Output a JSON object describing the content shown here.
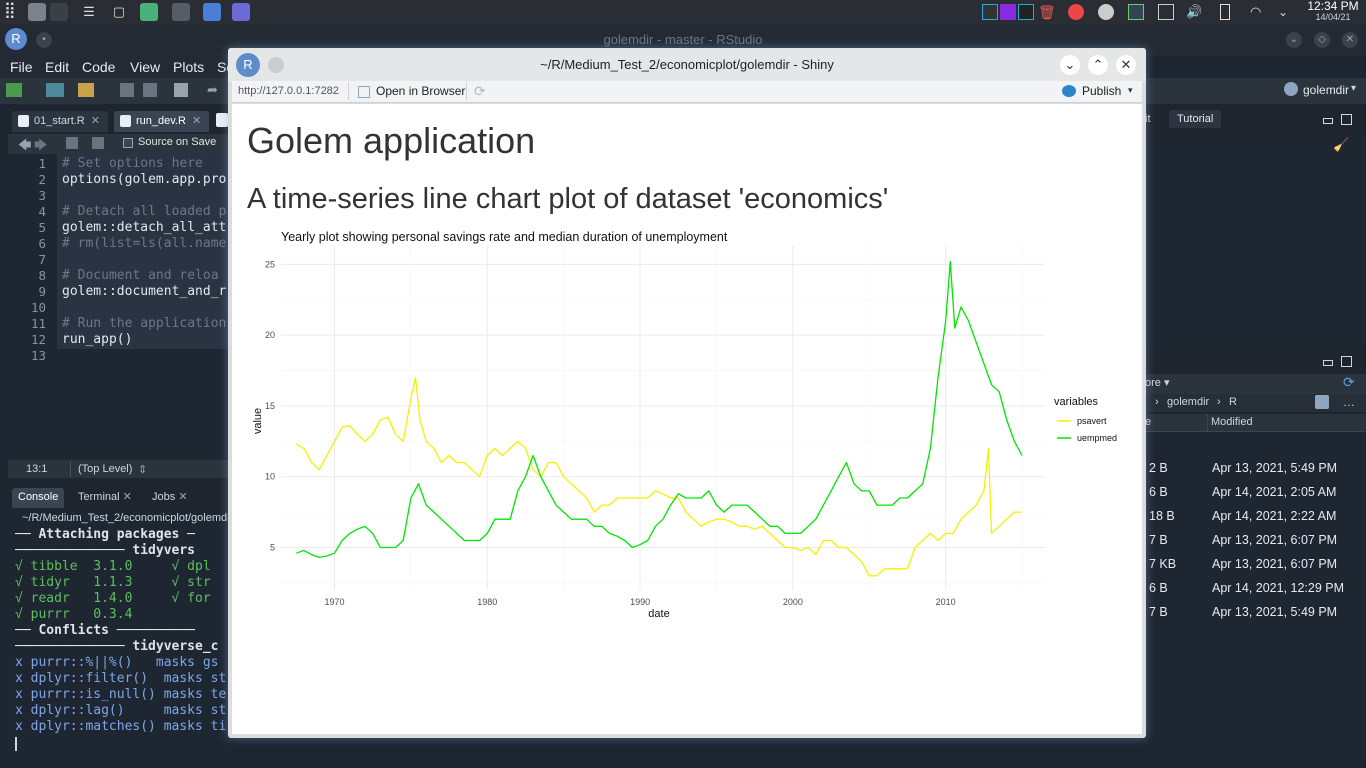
{
  "taskbar": {
    "time": "12:34 PM",
    "date": "14/04/21"
  },
  "rstudio": {
    "window_title": "golemdir - master - RStudio",
    "menu": [
      "File",
      "Edit",
      "Code",
      "View",
      "Plots",
      "Se"
    ],
    "project": "golemdir",
    "editor_tabs": [
      "01_start.R",
      "run_dev.R"
    ],
    "source_on_save": "Source on Save",
    "code_lines": [
      {
        "n": "1",
        "t": "# Set options here",
        "comment": true
      },
      {
        "n": "2",
        "t": "options(golem.app.pro",
        "comment": false
      },
      {
        "n": "3",
        "t": "",
        "comment": false
      },
      {
        "n": "4",
        "t": "# Detach all loaded p",
        "comment": true
      },
      {
        "n": "5",
        "t": "golem::detach_all_att",
        "comment": false
      },
      {
        "n": "6",
        "t": "# rm(list=ls(all.name",
        "comment": true
      },
      {
        "n": "7",
        "t": "",
        "comment": false
      },
      {
        "n": "8",
        "t": "# Document and reloa",
        "comment": true
      },
      {
        "n": "9",
        "t": "golem::document_and_r",
        "comment": false
      },
      {
        "n": "10",
        "t": "",
        "comment": false
      },
      {
        "n": "11",
        "t": "# Run the application",
        "comment": true
      },
      {
        "n": "12",
        "t": "run_app()",
        "comment": false
      },
      {
        "n": "13",
        "t": "",
        "comment": false
      }
    ],
    "cursor_pos": "13:1",
    "scope": "(Top Level)",
    "console_tabs": [
      "Console",
      "Terminal",
      "Jobs"
    ],
    "console_path": "~/R/Medium_Test_2/economicplot/golemdi",
    "console_lines": [
      "── Attaching packages ─",
      "────────────── tidyvers",
      "√ tibble  3.1.0     √ dpl",
      "√ tidyr   1.1.3     √ str",
      "√ readr   1.4.0     √ for",
      "√ purrr   0.3.4",
      "── Conflicts ──────────",
      "────────────── tidyverse_c",
      "x purrr::%||%()   masks gs",
      "x dplyr::filter()  masks st",
      "x purrr::is_null() masks te",
      "x dplyr::lag()     masks st",
      "x dplyr::matches() masks ti"
    ],
    "right_tabs": [
      "it",
      "Tutorial"
    ],
    "files_more": "ore",
    "files_crumb": [
      "golemdir",
      "R"
    ],
    "files_header": [
      "e",
      "Modified"
    ],
    "files": [
      {
        "size": "2 B",
        "modified": "Apr 13, 2021, 5:49 PM"
      },
      {
        "size": "6 B",
        "modified": "Apr 14, 2021, 2:05 AM"
      },
      {
        "size": "18 B",
        "modified": "Apr 14, 2021, 2:22 AM"
      },
      {
        "size": "7 B",
        "modified": "Apr 13, 2021, 6:07 PM"
      },
      {
        "size": "7 KB",
        "modified": "Apr 13, 2021, 6:07 PM"
      },
      {
        "size": "6 B",
        "modified": "Apr 14, 2021, 12:29 PM"
      },
      {
        "size": "7 B",
        "modified": "Apr 13, 2021, 5:49 PM"
      }
    ]
  },
  "shiny": {
    "window_title": "~/R/Medium_Test_2/economicplot/golemdir - Shiny",
    "url": "http://127.0.0.1:7282",
    "open_in_browser": "Open in Browser",
    "publish": "Publish",
    "h1": "Golem application",
    "h2": "A time-series line chart plot of dataset 'economics'"
  },
  "chart_data": {
    "type": "line",
    "title": "Yearly plot showing personal savings rate and median duration of unemployment",
    "xlabel": "date",
    "ylabel": "value",
    "xlim": [
      1966.5,
      2016.5
    ],
    "ylim": [
      2.0,
      26.3
    ],
    "xticks": [
      1970,
      1980,
      1990,
      2000,
      2010
    ],
    "yticks": [
      5,
      10,
      15,
      20,
      25
    ],
    "legend_title": "variables",
    "legend_position": "right",
    "grid": true,
    "series": [
      {
        "name": "psavert",
        "color": "#f2f200",
        "x": [
          1967.5,
          1968,
          1968.5,
          1969,
          1969.5,
          1970,
          1970.5,
          1971,
          1971.5,
          1972,
          1972.5,
          1973,
          1973.5,
          1974,
          1974.5,
          1975,
          1975.3,
          1975.6,
          1976,
          1976.5,
          1977,
          1977.5,
          1978,
          1978.5,
          1979,
          1979.5,
          1980,
          1980.5,
          1981,
          1981.5,
          1982,
          1982.5,
          1983,
          1983.5,
          1984,
          1984.5,
          1985,
          1985.5,
          1986,
          1986.5,
          1987,
          1987.5,
          1988,
          1988.5,
          1989,
          1989.5,
          1990,
          1990.5,
          1991,
          1991.5,
          1992,
          1992.5,
          1993,
          1993.5,
          1994,
          1994.5,
          1995,
          1995.5,
          1996,
          1996.5,
          1997,
          1997.5,
          1998,
          1998.5,
          1999,
          1999.5,
          2000,
          2000.5,
          2001,
          2001.5,
          2002,
          2002.5,
          2003,
          2003.5,
          2004,
          2004.5,
          2005,
          2005.5,
          2006,
          2006.5,
          2007,
          2007.5,
          2008,
          2008.5,
          2009,
          2009.5,
          2010,
          2010.5,
          2011,
          2011.5,
          2012,
          2012.5,
          2012.8,
          2013,
          2013.5,
          2014,
          2014.5,
          2015
        ],
        "y": [
          12.3,
          12.0,
          11.0,
          10.5,
          11.5,
          12.5,
          13.5,
          13.6,
          13.0,
          12.5,
          13.0,
          14.0,
          14.2,
          13.0,
          12.5,
          15.5,
          17.0,
          14.0,
          12.5,
          12.0,
          11.0,
          11.5,
          11.0,
          11.0,
          10.5,
          10.0,
          11.5,
          12.0,
          11.5,
          12.0,
          12.5,
          12.0,
          10.5,
          10.0,
          11.0,
          11.0,
          10.0,
          9.5,
          9.0,
          8.5,
          7.5,
          8.0,
          8.0,
          8.5,
          8.5,
          8.5,
          8.5,
          8.5,
          9.0,
          8.8,
          8.5,
          8.5,
          7.5,
          7.0,
          6.5,
          6.8,
          7.0,
          7.0,
          6.8,
          6.5,
          6.5,
          6.3,
          6.5,
          6.0,
          5.5,
          5.0,
          5.0,
          4.8,
          5.0,
          4.5,
          5.5,
          5.5,
          5.0,
          5.0,
          4.5,
          4.0,
          3.0,
          3.0,
          3.5,
          3.5,
          3.5,
          3.5,
          5.0,
          5.5,
          6.0,
          5.5,
          6.0,
          6.0,
          7.0,
          7.5,
          8.0,
          9.0,
          12.0,
          6.0,
          6.5,
          7.0,
          7.5,
          7.5
        ]
      },
      {
        "name": "uempmed",
        "color": "#00e600",
        "x": [
          1967.5,
          1968,
          1968.5,
          1969,
          1969.5,
          1970,
          1970.5,
          1971,
          1971.5,
          1972,
          1972.5,
          1973,
          1973.5,
          1974,
          1974.5,
          1975,
          1975.5,
          1976,
          1976.5,
          1977,
          1977.5,
          1978,
          1978.5,
          1979,
          1979.5,
          1980,
          1980.5,
          1981,
          1981.5,
          1982,
          1982.5,
          1983,
          1983.5,
          1984,
          1984.5,
          1985,
          1985.5,
          1986,
          1986.5,
          1987,
          1987.5,
          1988,
          1988.5,
          1989,
          1989.5,
          1990,
          1990.5,
          1991,
          1991.5,
          1992,
          1992.5,
          1993,
          1993.5,
          1994,
          1994.5,
          1995,
          1995.5,
          1996,
          1996.5,
          1997,
          1997.5,
          1998,
          1998.5,
          1999,
          1999.5,
          2000,
          2000.5,
          2001,
          2001.5,
          2002,
          2002.5,
          2003,
          2003.5,
          2004,
          2004.5,
          2005,
          2005.5,
          2006,
          2006.5,
          2007,
          2007.5,
          2008,
          2008.5,
          2009,
          2009.5,
          2010,
          2010.3,
          2010.6,
          2011,
          2011.5,
          2012,
          2012.5,
          2013,
          2013.5,
          2014,
          2014.5,
          2015
        ],
        "y": [
          4.6,
          4.8,
          4.5,
          4.3,
          4.4,
          4.6,
          5.5,
          6.0,
          6.3,
          6.5,
          6.0,
          5.0,
          5.0,
          5.0,
          5.5,
          8.5,
          9.5,
          8.0,
          7.5,
          7.0,
          6.5,
          6.0,
          5.5,
          5.5,
          5.5,
          6.0,
          7.0,
          7.0,
          7.0,
          9.0,
          10.0,
          11.5,
          10.0,
          9.0,
          8.0,
          7.5,
          7.0,
          7.0,
          7.0,
          6.5,
          6.5,
          6.0,
          5.8,
          5.5,
          5.0,
          5.2,
          5.5,
          6.5,
          7.0,
          8.0,
          8.8,
          8.5,
          8.5,
          8.5,
          9.0,
          8.0,
          7.5,
          8.0,
          8.0,
          8.0,
          7.5,
          7.0,
          6.5,
          6.5,
          6.0,
          6.0,
          6.0,
          6.5,
          7.0,
          8.0,
          9.0,
          10.0,
          11.0,
          9.5,
          9.0,
          9.0,
          8.0,
          8.0,
          8.0,
          8.5,
          8.5,
          9.0,
          9.5,
          12.0,
          17.0,
          21.0,
          25.2,
          20.5,
          22.0,
          21.0,
          19.5,
          18.0,
          16.5,
          16.0,
          14.0,
          12.5,
          11.5
        ]
      }
    ]
  }
}
